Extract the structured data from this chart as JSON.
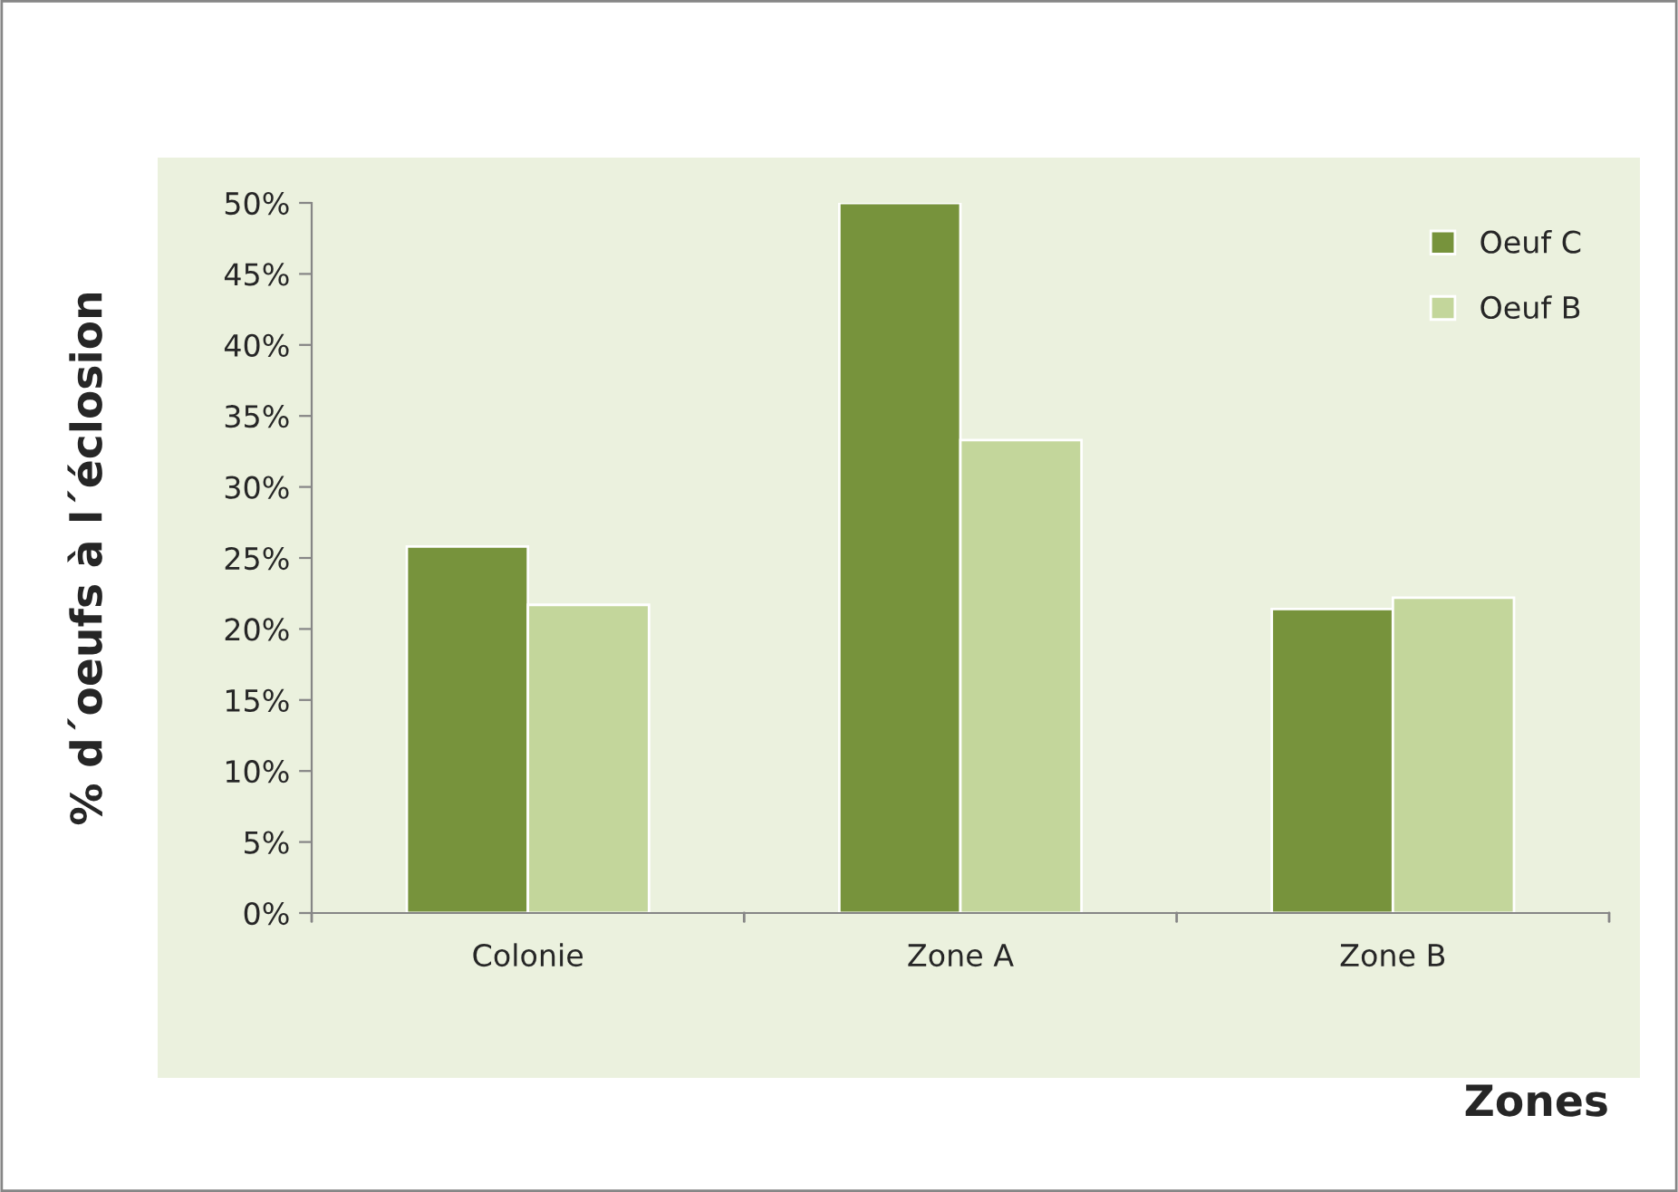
{
  "chart_data": {
    "type": "bar",
    "xlabel": "Zones",
    "ylabel": "% d´oeufs à l´éclosion",
    "categories": [
      "Colonie",
      "Zone A",
      "Zone B"
    ],
    "series": [
      {
        "name": "Oeuf C",
        "color": "#77933c",
        "values": [
          25.8,
          50,
          21.4
        ]
      },
      {
        "name": "Oeuf B",
        "color": "#c3d69b",
        "values": [
          21.7,
          33.3,
          22.2
        ]
      }
    ],
    "ylim": [
      0,
      50
    ],
    "yticks": [
      {
        "value": 0,
        "label": "0%"
      },
      {
        "value": 5,
        "label": "5%"
      },
      {
        "value": 10,
        "label": "10%"
      },
      {
        "value": 15,
        "label": "15%"
      },
      {
        "value": 20,
        "label": "20%"
      },
      {
        "value": 25,
        "label": "25%"
      },
      {
        "value": 30,
        "label": "30%"
      },
      {
        "value": 35,
        "label": "35%"
      },
      {
        "value": 40,
        "label": "40%"
      },
      {
        "value": 45,
        "label": "45%"
      },
      {
        "value": 50,
        "label": "50%"
      }
    ],
    "grid": false,
    "legend": "top right"
  }
}
